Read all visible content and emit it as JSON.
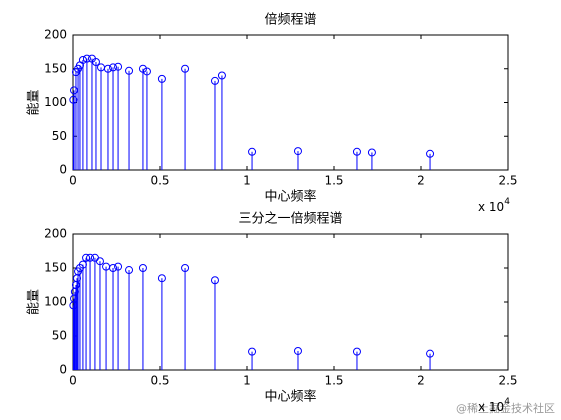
{
  "chart_data": [
    {
      "type": "stem",
      "title": "倍频程谱",
      "x_label": "中心频率",
      "y_label": "能量",
      "x_multiplier_base": "x 10",
      "x_multiplier_power": "4",
      "series": [
        {
          "name": "能量",
          "color": "#0000ff",
          "x": [
            20,
            60,
            170,
            290,
            400,
            570,
            800,
            1090,
            1320,
            1610,
            2010,
            2300,
            2590,
            3220,
            4020,
            4250,
            5110,
            6440,
            8160,
            8560,
            10290,
            12930,
            16320,
            17180,
            20520
          ],
          "values": [
            104,
            118,
            145,
            150,
            155,
            163,
            165,
            165,
            160,
            152,
            150,
            152,
            153,
            147,
            150,
            146,
            135,
            150,
            132,
            140,
            27,
            28,
            27,
            26,
            24
          ]
        }
      ],
      "xlim": [
        0,
        25000
      ],
      "xticks": [
        {
          "value": 0,
          "label": "0"
        },
        {
          "value": 5000,
          "label": "0.5"
        },
        {
          "value": 10000,
          "label": "1"
        },
        {
          "value": 15000,
          "label": "1.5"
        },
        {
          "value": 20000,
          "label": "2"
        },
        {
          "value": 25000,
          "label": "2.5"
        }
      ],
      "ylim": [
        0,
        200
      ],
      "yticks": [
        0,
        50,
        100,
        150,
        200
      ],
      "grid": false
    },
    {
      "type": "stem",
      "title": "三分之一倍频程谱",
      "x_label": "中心频率",
      "y_label": "能量",
      "x_multiplier_base": "x 10",
      "x_multiplier_power": "4",
      "series": [
        {
          "name": "能量",
          "color": "#0000ff",
          "x": [
            20,
            60,
            110,
            170,
            230,
            290,
            400,
            570,
            750,
            980,
            1260,
            1550,
            1900,
            2300,
            2590,
            3220,
            4020,
            5110,
            6440,
            8160,
            10290,
            12930,
            16320,
            20520
          ],
          "values": [
            95,
            105,
            115,
            125,
            135,
            145,
            150,
            155,
            165,
            165,
            165,
            160,
            152,
            150,
            152,
            147,
            150,
            135,
            150,
            132,
            27,
            28,
            27,
            24
          ]
        }
      ],
      "xlim": [
        0,
        25000
      ],
      "xticks": [
        {
          "value": 0,
          "label": "0"
        },
        {
          "value": 5000,
          "label": "0.5"
        },
        {
          "value": 10000,
          "label": "1"
        },
        {
          "value": 15000,
          "label": "1.5"
        },
        {
          "value": 20000,
          "label": "2"
        },
        {
          "value": 25000,
          "label": "2.5"
        }
      ],
      "ylim": [
        0,
        200
      ],
      "yticks": [
        0,
        50,
        100,
        150,
        200
      ],
      "grid": false
    }
  ],
  "watermark": "@稀土掘金技术社区"
}
